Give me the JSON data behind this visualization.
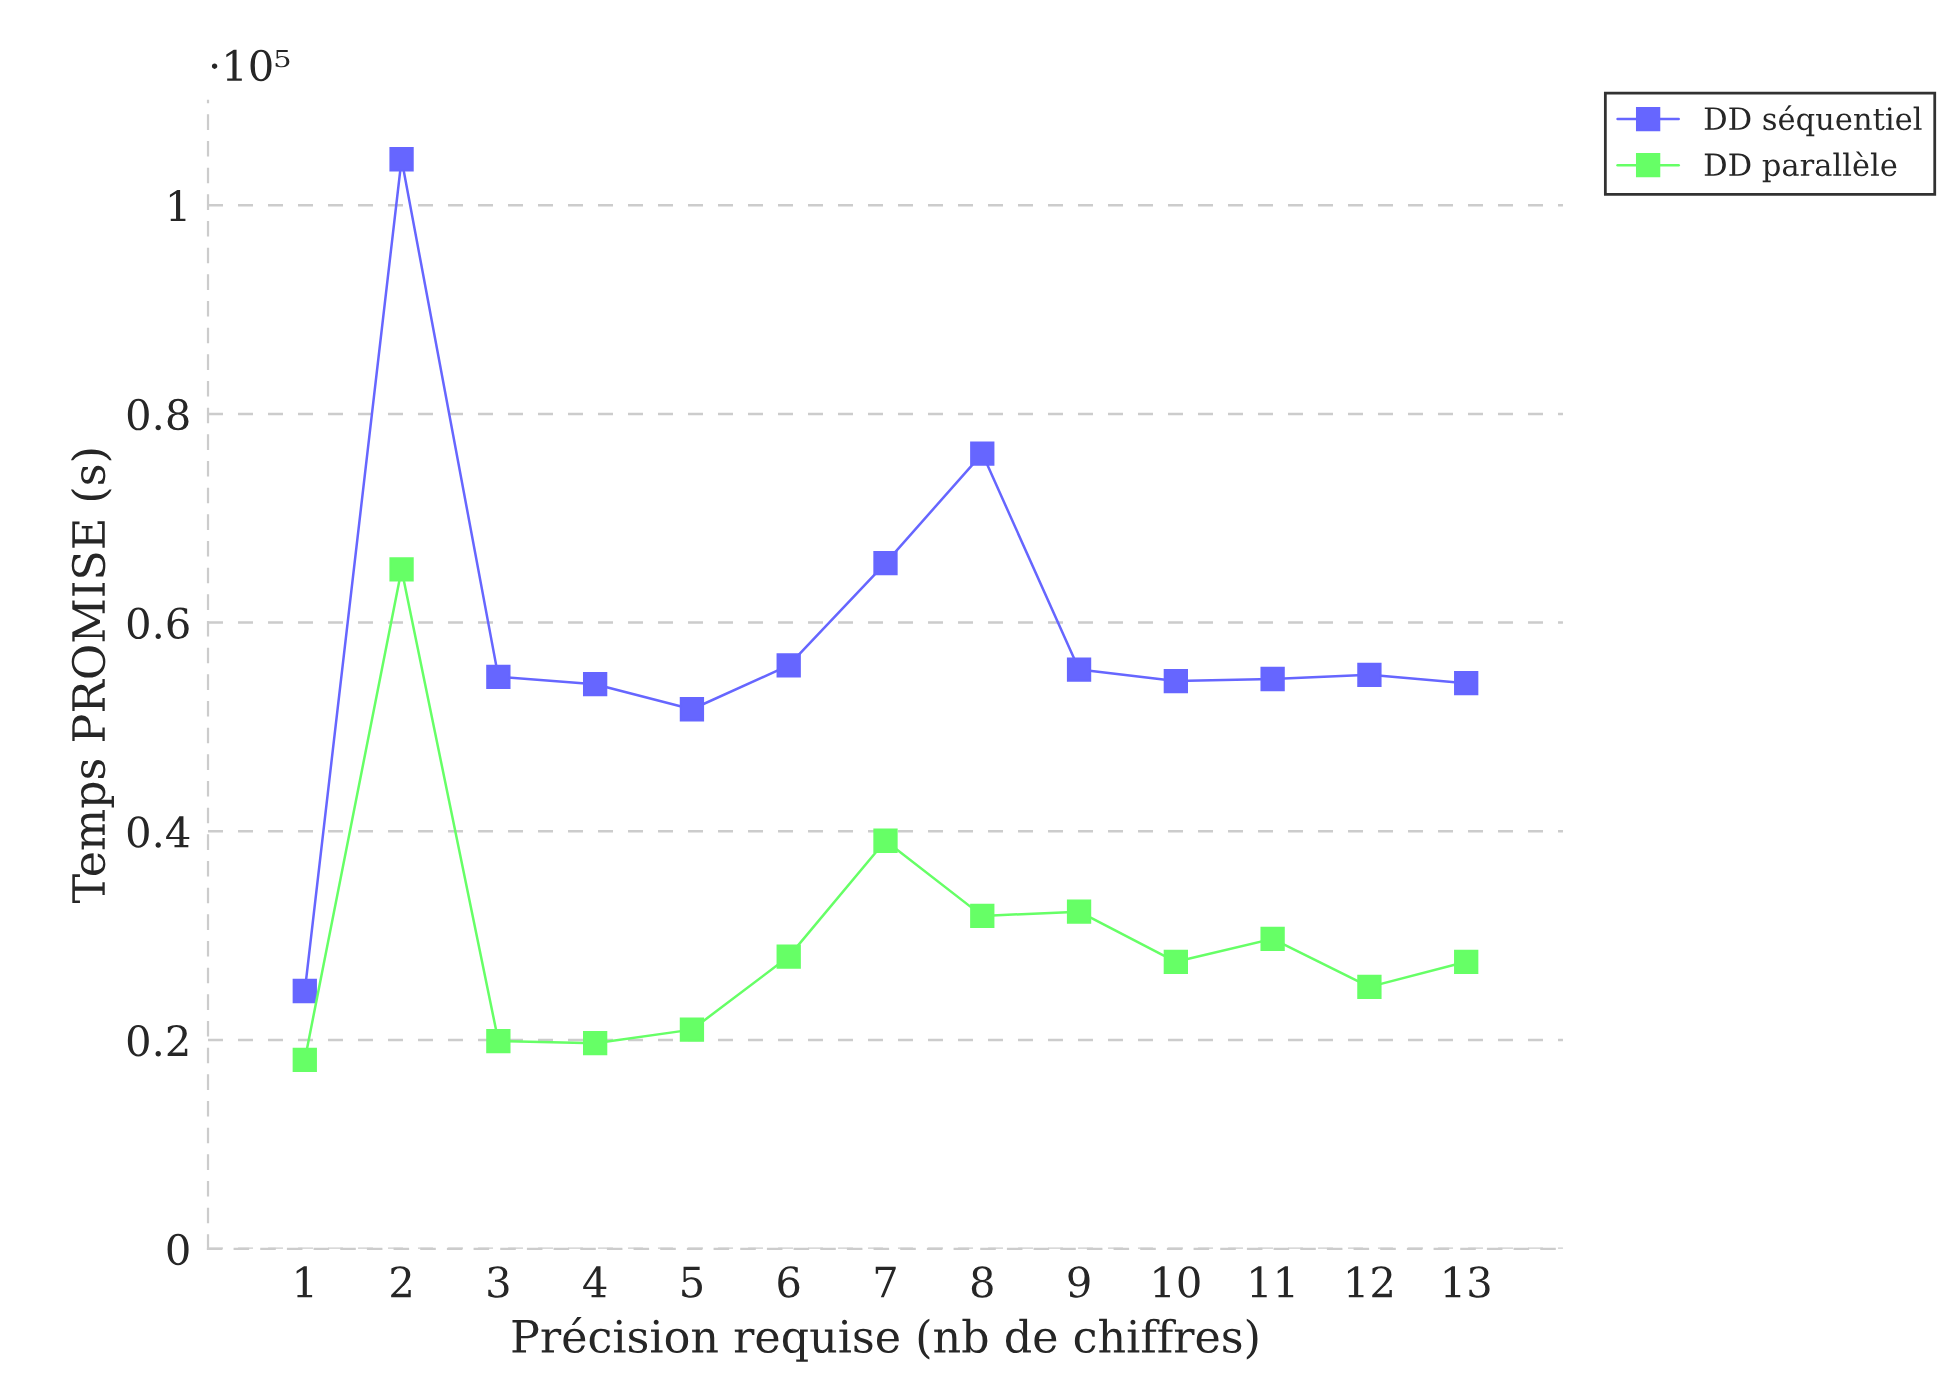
{
  "chart_data": {
    "type": "line",
    "xlabel": "Précision requise (nb de chiffres)",
    "ylabel": "Temps PROMISE (s)",
    "annotations": [
      "·10⁵"
    ],
    "x": [
      1,
      2,
      3,
      4,
      5,
      6,
      7,
      8,
      9,
      10,
      11,
      12,
      13
    ],
    "series": [
      {
        "name": "DD séquentiel",
        "color": "#6666ff",
        "values": [
          0.247,
          1.044,
          0.548,
          0.541,
          0.517,
          0.559,
          0.657,
          0.762,
          0.555,
          0.544,
          0.546,
          0.55,
          0.542
        ]
      },
      {
        "name": "DD parallèle",
        "color": "#66ff66",
        "values": [
          0.181,
          0.651,
          0.199,
          0.197,
          0.21,
          0.28,
          0.391,
          0.319,
          0.323,
          0.275,
          0.297,
          0.251,
          0.275
        ]
      }
    ],
    "xlim": [
      0,
      14
    ],
    "xticks": [
      1,
      2,
      3,
      4,
      5,
      6,
      7,
      8,
      9,
      10,
      11,
      12,
      13
    ],
    "ylim": [
      0,
      1.1
    ],
    "yticks": [
      0,
      0.2,
      0.4,
      0.6,
      0.8,
      1
    ],
    "grid": "y",
    "legend": "top right",
    "marker": "square",
    "line_style": "solid"
  }
}
